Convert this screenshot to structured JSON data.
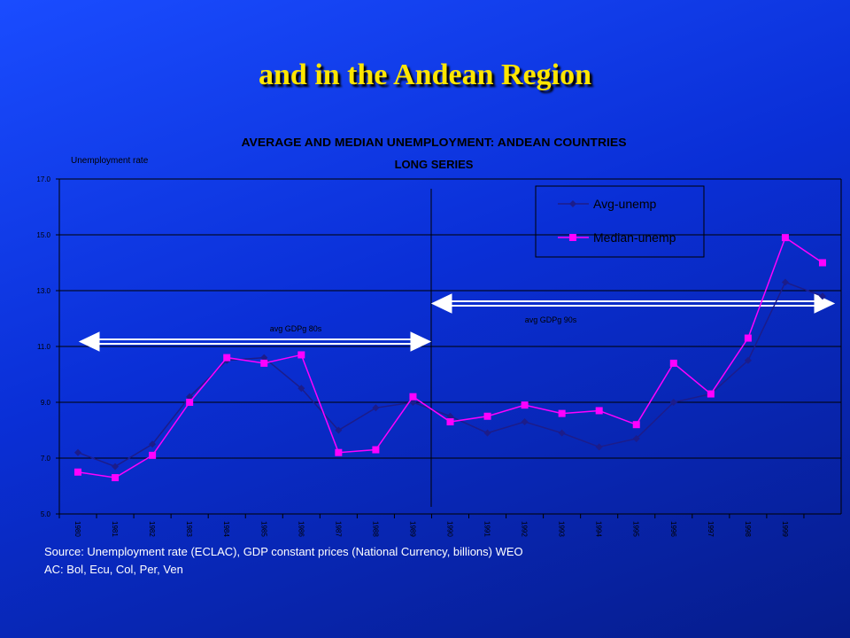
{
  "slide_title": "and in the Andean Region",
  "chart_data": {
    "type": "line",
    "title": "AVERAGE AND MEDIAN UNEMPLOYMENT: ANDEAN COUNTRIES",
    "subtitle": "LONG SERIES",
    "y_label": "Unemployment rate",
    "categories": [
      "1980",
      "1981",
      "1982",
      "1983",
      "1984",
      "1985",
      "1986",
      "1987",
      "1988",
      "1989",
      "1990",
      "1991",
      "1992",
      "1993",
      "1994",
      "1995",
      "1996",
      "1997",
      "1998",
      "1999",
      null
    ],
    "series": [
      {
        "name": "Avg-unemp",
        "color": "#1c1c8a",
        "marker": "diamond",
        "values": [
          7.2,
          6.7,
          7.5,
          9.2,
          10.5,
          10.6,
          9.5,
          8.0,
          8.8,
          9.0,
          8.5,
          7.9,
          8.3,
          7.9,
          7.4,
          7.7,
          9.0,
          9.3,
          10.5,
          13.3,
          12.8
        ]
      },
      {
        "name": "Median-unemp",
        "color": "#ff00ff",
        "marker": "square",
        "values": [
          6.5,
          6.3,
          7.1,
          9.0,
          10.6,
          10.4,
          10.7,
          7.2,
          7.3,
          9.2,
          8.3,
          8.5,
          8.9,
          8.6,
          8.7,
          8.2,
          10.4,
          9.3,
          11.3,
          14.9,
          14.0
        ]
      }
    ],
    "ylim": [
      5,
      17
    ],
    "yticks": [
      {
        "value": 5,
        "label": "5.0"
      },
      {
        "value": 7,
        "label": "7.0"
      },
      {
        "value": 9,
        "label": "9.0"
      },
      {
        "value": 11,
        "label": "11.0"
      },
      {
        "value": 13,
        "label": "13.0"
      },
      {
        "value": 15,
        "label": "15.0"
      },
      {
        "value": 17,
        "label": "17.0"
      }
    ],
    "grid": true,
    "legend": "upper right",
    "annotations": [
      "avg GDPg 80s",
      "avg GDPg 90s"
    ]
  },
  "source": [
    "Source: Unemployment rate (ECLAC), GDP constant prices (National Currency, billions) WEO",
    "AC: Bol, Ecu, Col, Per, Ven"
  ]
}
